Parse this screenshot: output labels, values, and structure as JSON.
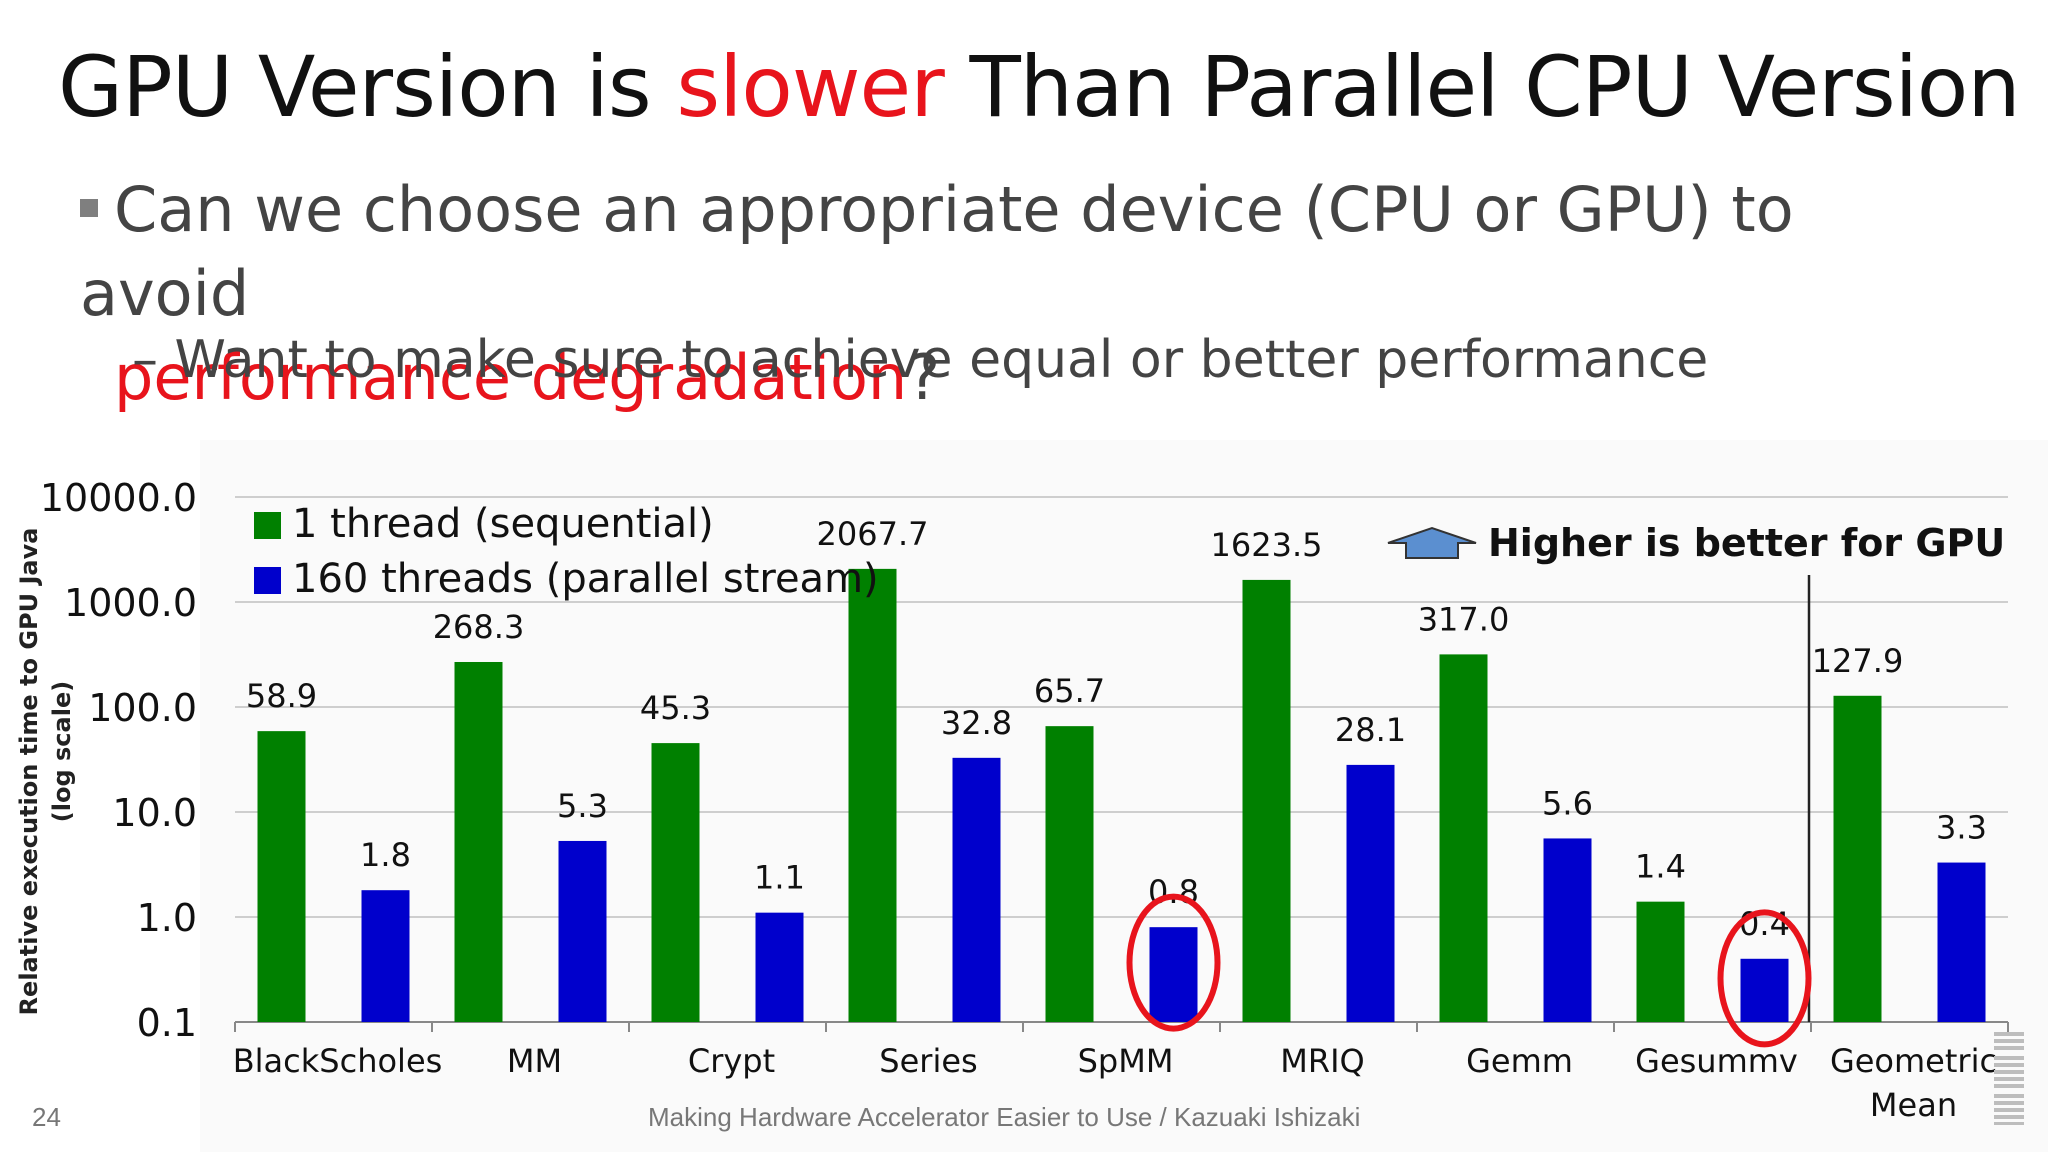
{
  "slide": {
    "title_part1": "GPU Version is ",
    "title_highlight": "slower",
    "title_part2": " Than Parallel CPU Version",
    "bullet_part1": "Can we choose an appropriate device (CPU or GPU) to avoid",
    "bullet_highlight": "performance degradation",
    "bullet_part2": "?",
    "sub_bullet_dash": "–",
    "sub_bullet": "Want to make sure to achieve equal or better performance",
    "footer": "Making Hardware Accelerator Easier to Use / Kazuaki Ishizaki",
    "page_number": "24",
    "logo_text": "IBM"
  },
  "chart_data": {
    "type": "bar",
    "ylabel": "Relative execution time to GPU Java",
    "ylabel_line2": "(log scale)",
    "yscale": "log",
    "ylim": [
      0.1,
      10000
    ],
    "yticks": [
      "10000.0",
      "1000.0",
      "100.0",
      "10.0",
      "1.0",
      "0.1"
    ],
    "grid": true,
    "legend_position": "top-left",
    "categories": [
      "BlackScholes",
      "MM",
      "Crypt",
      "Series",
      "SpMM",
      "MRIQ",
      "Gemm",
      "Gesummv",
      "Geometric Mean"
    ],
    "series": [
      {
        "name": "1 thread (sequential)",
        "color": "#008000",
        "values": [
          58.9,
          268.3,
          45.3,
          2067.7,
          65.7,
          1623.5,
          317.0,
          1.4,
          127.9
        ],
        "labels": [
          "58.9",
          "268.3",
          "45.3",
          "2067.7",
          "65.7",
          "1623.5",
          "317.0",
          "1.4",
          "127.9"
        ]
      },
      {
        "name": "160 threads (parallel stream)",
        "color": "#0000cc",
        "values": [
          1.8,
          5.3,
          1.1,
          32.8,
          0.8,
          28.1,
          5.6,
          0.4,
          3.3
        ],
        "labels": [
          "1.8",
          "5.3",
          "1.1",
          "32.8",
          "0.8",
          "28.1",
          "5.6",
          "0.4",
          "3.3"
        ]
      }
    ],
    "highlighted": [
      {
        "series": 1,
        "category": "SpMM"
      },
      {
        "series": 1,
        "category": "Gesummv"
      }
    ],
    "annotation": "Higher is better for GPU",
    "annotation_color": "#5b8fd0",
    "highlight_color": "#e8141c"
  }
}
